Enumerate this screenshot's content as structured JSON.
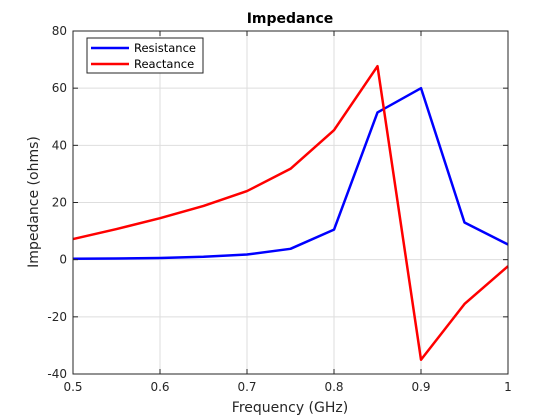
{
  "chart_data": {
    "type": "line",
    "title": "Impedance",
    "xlabel": "Frequency (GHz)",
    "ylabel": "Impedance (ohms)",
    "xlim": [
      0.5,
      1.0
    ],
    "ylim": [
      -40,
      80
    ],
    "xticks": [
      0.5,
      0.6,
      0.7,
      0.8,
      0.9,
      1.0
    ],
    "xtick_labels": [
      "0.5",
      "0.6",
      "0.7",
      "0.8",
      "0.9",
      "1"
    ],
    "yticks": [
      -40,
      -20,
      0,
      20,
      40,
      60,
      80
    ],
    "ytick_labels": [
      "-40",
      "-20",
      "0",
      "20",
      "40",
      "60",
      "80"
    ],
    "grid": true,
    "legend_position": "top-left",
    "x": [
      0.5,
      0.55,
      0.6,
      0.65,
      0.7,
      0.75,
      0.8,
      0.85,
      0.9,
      0.95,
      1.0
    ],
    "series": [
      {
        "name": "Resistance",
        "color": "#0000ff",
        "values": [
          0.3,
          0.4,
          0.6,
          1.0,
          1.8,
          3.8,
          10.5,
          51.5,
          60.0,
          13.0,
          5.3
        ]
      },
      {
        "name": "Reactance",
        "color": "#ff0000",
        "values": [
          7.2,
          10.7,
          14.5,
          18.8,
          24.0,
          31.8,
          45.3,
          67.7,
          -35.0,
          -15.5,
          -2.3
        ]
      }
    ]
  }
}
